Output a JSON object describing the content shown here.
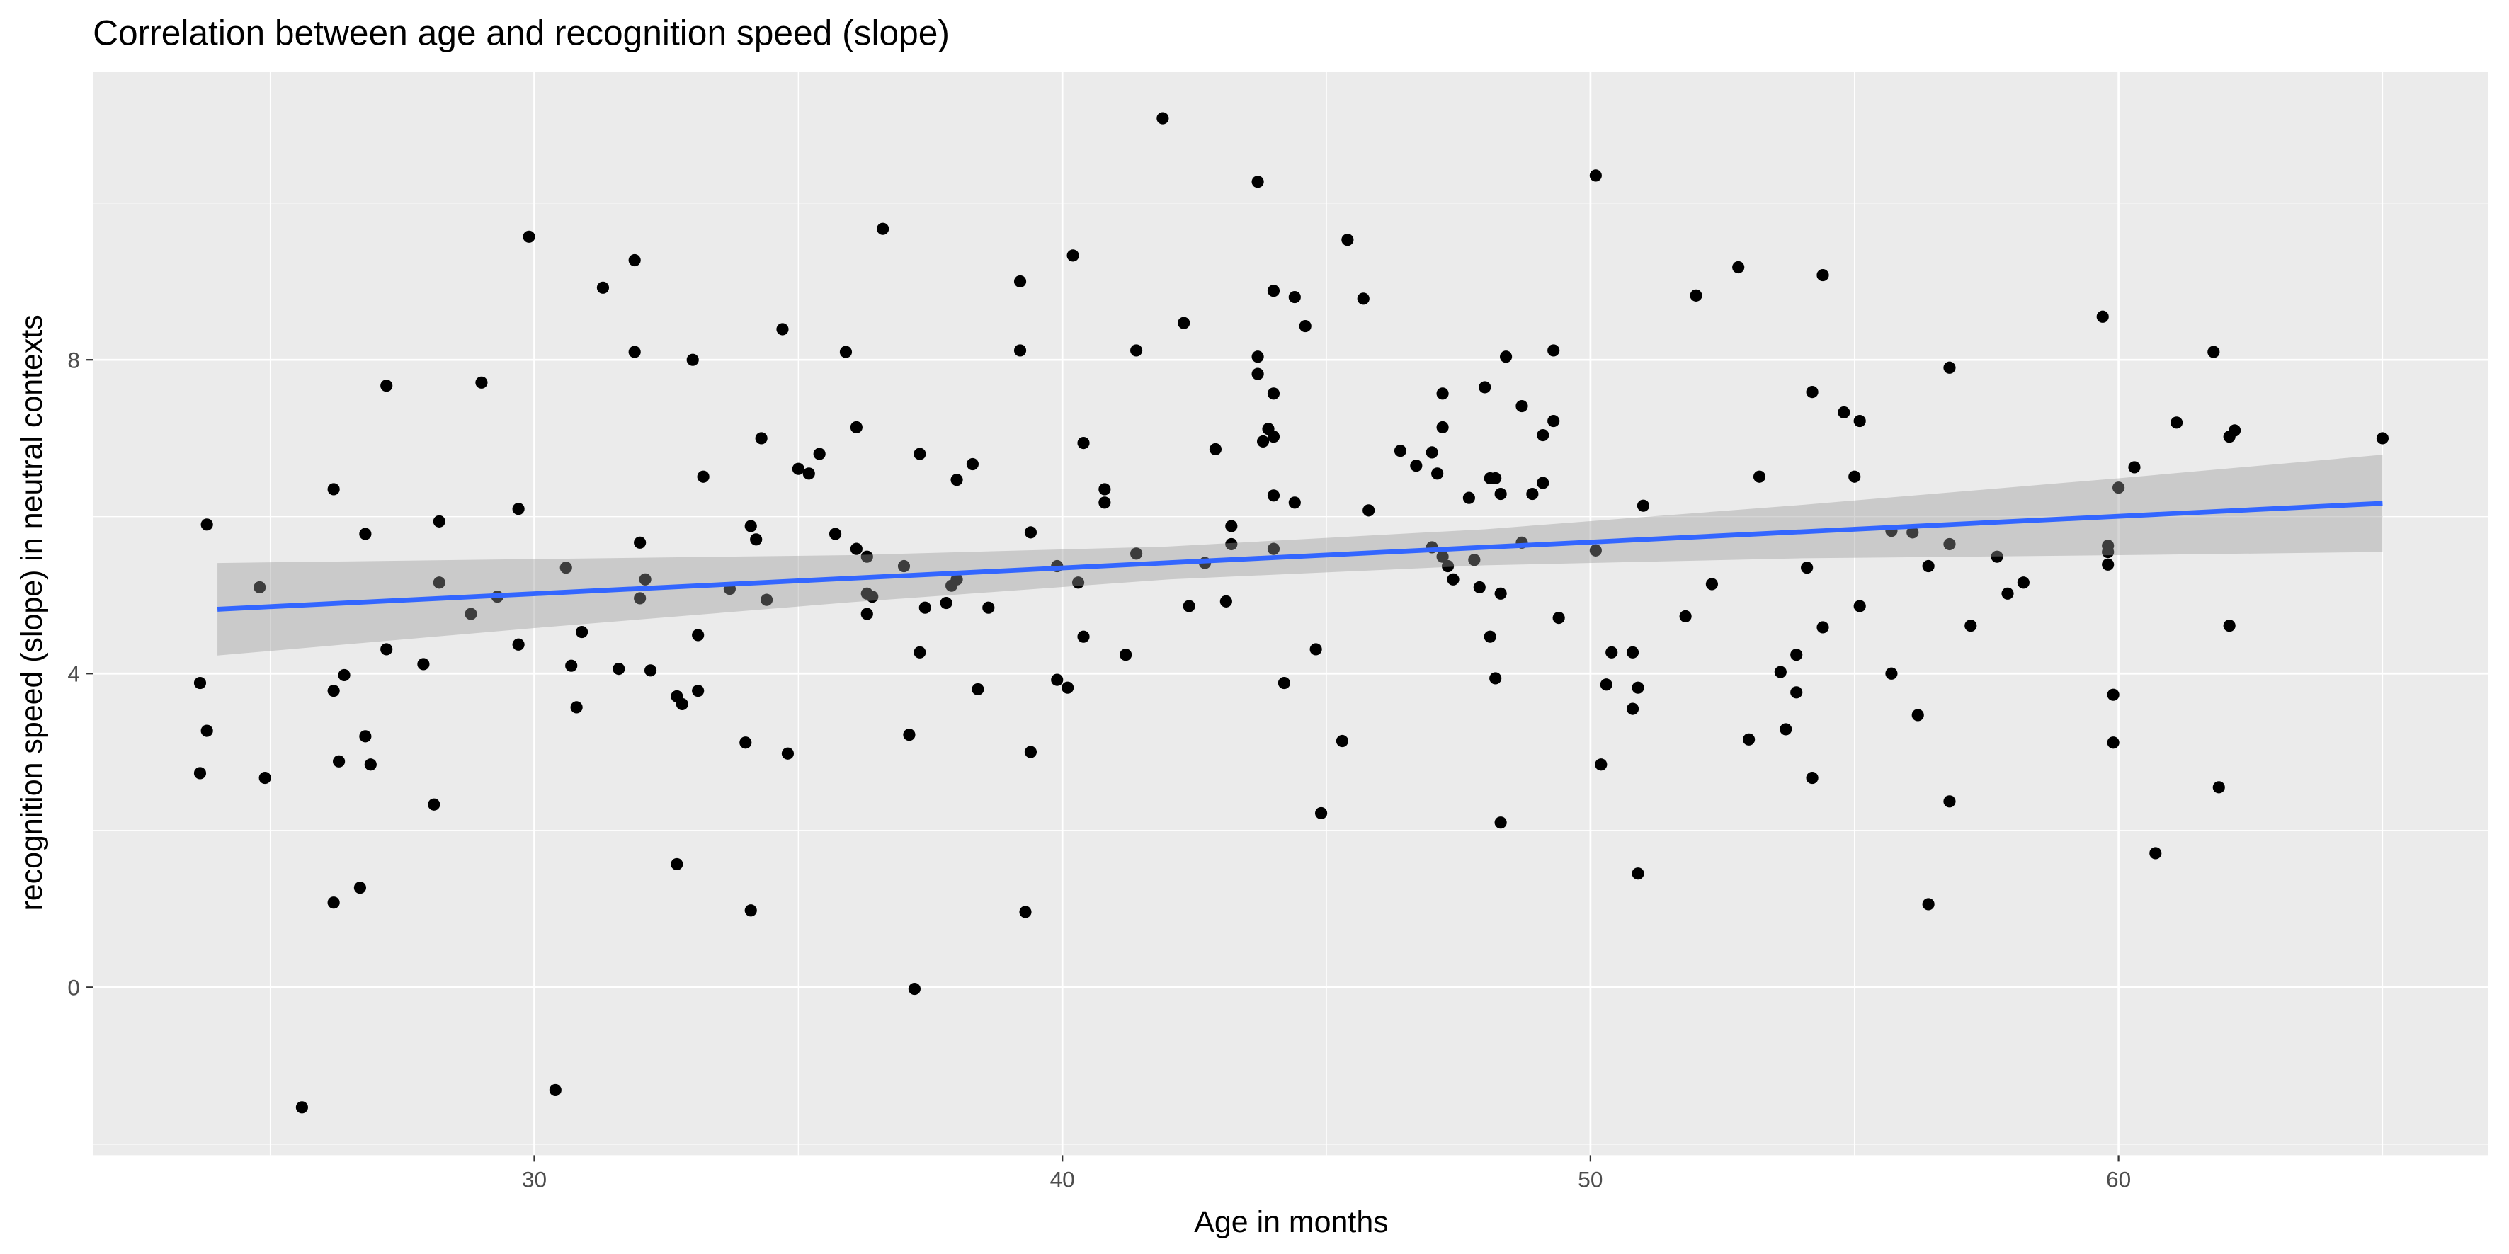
{
  "chart_data": {
    "type": "scatter",
    "title": "Correlation between age and recognition speed (slope)",
    "x_label": "Age in months",
    "y_label": "recognition speed (slope) in neutral contexts",
    "color": "#000000",
    "xlim": [
      21.64,
      67.0
    ],
    "ylim": [
      -2.14,
      11.67
    ],
    "xticks": [
      30,
      40,
      50,
      60
    ],
    "yticks": [
      0,
      4,
      8
    ],
    "grid": true,
    "fit": {
      "color": "#3366ff",
      "x": [
        24,
        65
      ],
      "y": [
        4.82,
        6.17
      ]
    },
    "band": {
      "color": "#999999",
      "x": [
        24,
        30,
        36,
        42,
        48,
        54,
        60,
        65
      ],
      "lower": [
        4.23,
        4.58,
        4.91,
        5.2,
        5.38,
        5.47,
        5.51,
        5.55
      ],
      "upper": [
        5.41,
        5.46,
        5.51,
        5.62,
        5.84,
        6.15,
        6.49,
        6.79
      ]
    },
    "x": [
      23.67,
      23.67,
      23.8,
      23.8,
      24.8,
      24.9,
      25.6,
      26.2,
      26.2,
      26.2,
      26.3,
      26.4,
      26.7,
      26.8,
      26.8,
      26.9,
      27.2,
      27.2,
      27.9,
      28.1,
      28.2,
      28.2,
      28.8,
      29.0,
      29.3,
      29.7,
      29.7,
      29.9,
      30.4,
      30.6,
      30.7,
      30.8,
      30.9,
      31.3,
      31.6,
      31.9,
      31.9,
      32.0,
      32.0,
      32.1,
      32.2,
      32.7,
      32.7,
      32.8,
      33.0,
      33.1,
      33.1,
      33.2,
      33.7,
      34.0,
      34.1,
      34.1,
      34.2,
      34.3,
      34.4,
      34.7,
      34.8,
      35.0,
      35.2,
      35.4,
      35.7,
      35.9,
      36.1,
      36.1,
      36.3,
      36.3,
      36.3,
      36.4,
      36.6,
      37.0,
      37.1,
      37.2,
      37.3,
      37.3,
      37.4,
      37.8,
      37.9,
      38.0,
      38.0,
      38.3,
      38.4,
      38.6,
      39.2,
      39.2,
      39.3,
      39.4,
      39.4,
      39.9,
      39.9,
      40.1,
      40.2,
      40.3,
      40.4,
      40.4,
      40.8,
      40.8,
      41.2,
      41.4,
      41.4,
      41.9,
      42.3,
      42.4,
      42.7,
      42.9,
      43.1,
      43.2,
      43.2,
      43.7,
      43.7,
      43.7,
      43.8,
      43.9,
      44.0,
      44.0,
      44.0,
      44.0,
      44.0,
      44.2,
      44.4,
      44.4,
      44.6,
      44.8,
      44.9,
      45.3,
      45.4,
      45.7,
      45.8,
      46.4,
      46.7,
      47.0,
      47.0,
      47.1,
      47.2,
      47.2,
      47.2,
      47.3,
      47.4,
      47.7,
      47.8,
      47.9,
      48.0,
      48.1,
      48.1,
      48.2,
      48.2,
      48.3,
      48.3,
      48.3,
      48.4,
      48.7,
      48.7,
      48.9,
      49.1,
      49.1,
      49.3,
      49.3,
      49.4,
      50.1,
      50.1,
      50.2,
      50.3,
      50.4,
      50.8,
      50.8,
      50.9,
      50.9,
      51.0,
      51.8,
      52.0,
      52.3,
      52.8,
      53.0,
      53.2,
      53.6,
      53.7,
      53.9,
      53.9,
      54.1,
      54.2,
      54.2,
      54.4,
      54.4,
      54.8,
      55.0,
      55.1,
      55.1,
      55.7,
      55.7,
      56.1,
      56.2,
      56.4,
      56.4,
      56.8,
      56.8,
      56.8,
      57.2,
      57.7,
      57.9,
      58.2,
      59.7,
      59.8,
      59.8,
      59.8,
      59.9,
      59.9,
      60.0,
      60.3,
      60.7,
      61.1,
      61.8,
      61.9,
      62.1,
      62.1,
      62.2,
      65.0
    ],
    "y": [
      3.88,
      2.73,
      5.9,
      3.27,
      5.1,
      2.67,
      -1.53,
      1.08,
      3.78,
      6.35,
      2.88,
      3.98,
      1.27,
      3.2,
      5.78,
      2.84,
      7.67,
      4.31,
      4.12,
      2.33,
      5.94,
      5.16,
      4.76,
      7.71,
      4.98,
      6.1,
      4.37,
      9.57,
      -1.31,
      5.35,
      4.1,
      3.57,
      4.53,
      8.92,
      4.06,
      8.1,
      9.27,
      4.96,
      5.67,
      5.2,
      4.04,
      1.57,
      3.71,
      3.61,
      8.0,
      3.78,
      4.49,
      6.51,
      5.08,
      3.12,
      0.98,
      5.88,
      5.71,
      7.0,
      4.94,
      8.39,
      2.98,
      6.61,
      6.55,
      6.8,
      5.78,
      8.1,
      5.59,
      7.14,
      5.49,
      5.02,
      4.76,
      4.98,
      9.67,
      5.37,
      3.22,
      -0.02,
      4.27,
      6.8,
      4.84,
      4.9,
      5.12,
      5.2,
      6.47,
      6.67,
      3.8,
      4.84,
      9.0,
      8.12,
      0.96,
      5.8,
      3.0,
      5.37,
      3.92,
      3.82,
      9.33,
      5.16,
      4.47,
      6.94,
      6.18,
      6.35,
      4.24,
      8.12,
      5.53,
      11.08,
      8.47,
      4.86,
      5.41,
      6.86,
      4.92,
      5.65,
      5.88,
      7.82,
      10.27,
      8.04,
      6.96,
      7.12,
      6.27,
      7.57,
      7.02,
      5.59,
      8.88,
      3.88,
      8.8,
      6.18,
      8.43,
      4.31,
      2.22,
      3.14,
      9.53,
      8.78,
      6.08,
      6.84,
      6.65,
      6.82,
      5.61,
      6.55,
      7.57,
      7.14,
      5.49,
      5.37,
      5.2,
      6.24,
      5.45,
      5.1,
      7.65,
      6.49,
      4.47,
      6.49,
      3.94,
      2.1,
      6.29,
      5.02,
      8.04,
      5.67,
      7.41,
      6.29,
      7.04,
      6.43,
      7.22,
      8.12,
      4.71,
      10.35,
      5.57,
      2.84,
      3.86,
      4.27,
      3.55,
      4.27,
      1.45,
      3.82,
      6.14,
      4.73,
      8.82,
      5.14,
      9.18,
      3.16,
      6.51,
      4.02,
      3.29,
      3.76,
      4.24,
      5.35,
      2.67,
      7.59,
      9.08,
      4.59,
      7.33,
      6.51,
      4.86,
      7.22,
      5.82,
      4.0,
      5.8,
      3.47,
      5.37,
      1.06,
      2.37,
      7.9,
      5.65,
      4.61,
      5.49,
      5.02,
      5.16,
      8.55,
      5.39,
      5.55,
      5.63,
      3.12,
      3.73,
      6.37,
      6.63,
      1.71,
      7.2,
      8.1,
      2.55,
      4.61,
      7.02,
      7.1,
      7.0
    ]
  }
}
